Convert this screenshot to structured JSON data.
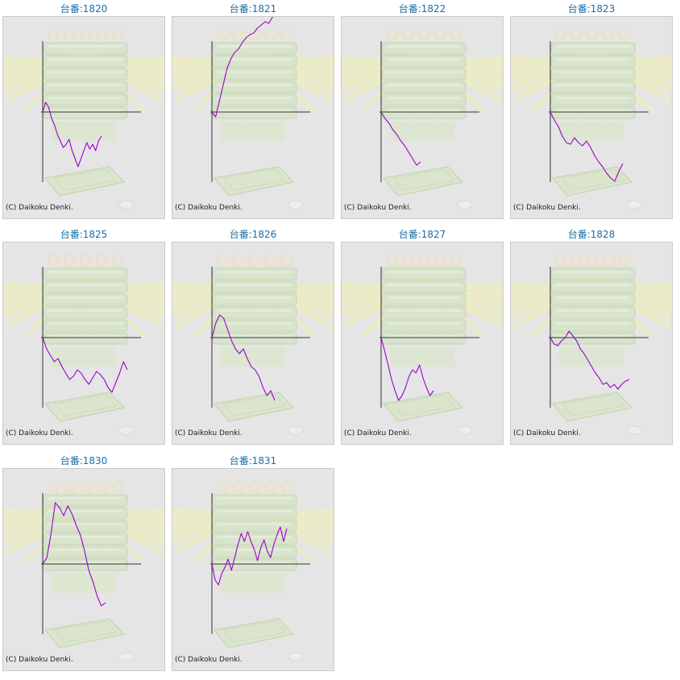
{
  "panels": [
    {
      "title": "台番:1820",
      "copyright": "(C) Daikoku Denki."
    },
    {
      "title": "台番:1821",
      "copyright": "(C) Daikoku Denki."
    },
    {
      "title": "台番:1822",
      "copyright": "(C) Daikoku Denki."
    },
    {
      "title": "台番:1823",
      "copyright": "(C) Daikoku Denki."
    },
    {
      "title": "台番:1825",
      "copyright": "(C) Daikoku Denki."
    },
    {
      "title": "台番:1826",
      "copyright": "(C) Daikoku Denki."
    },
    {
      "title": "台番:1827",
      "copyright": "(C) Daikoku Denki."
    },
    {
      "title": "台番:1828",
      "copyright": "(C) Daikoku Denki."
    },
    {
      "title": "台番:1830",
      "copyright": "(C) Daikoku Denki."
    },
    {
      "title": "台番:1831",
      "copyright": "(C) Daikoku Denki."
    }
  ],
  "colors": {
    "line": "#9900cc",
    "axis": "#333333",
    "title": "#1b6ea8",
    "panel_bg": "#e5e5e5"
  },
  "chart_data": [
    {
      "type": "line",
      "title": "台番:1820",
      "y": [
        0,
        12,
        6,
        -8,
        -16,
        -28,
        -36,
        -44,
        -40,
        -34,
        -48,
        -58,
        -68,
        -58,
        -48,
        -38,
        -46,
        -40,
        -48,
        -36,
        -30
      ]
    },
    {
      "type": "line",
      "title": "台番:1821",
      "y": [
        0,
        -6,
        14,
        34,
        54,
        66,
        74,
        78,
        86,
        92,
        96,
        98,
        104,
        108,
        112,
        110,
        118,
        122
      ]
    },
    {
      "type": "line",
      "title": "台番:1822",
      "y": [
        0,
        -8,
        -14,
        -22,
        -28,
        -36,
        -42,
        -50,
        -58,
        -66,
        -62
      ]
    },
    {
      "type": "line",
      "title": "台番:1823",
      "y": [
        0,
        -10,
        -18,
        -30,
        -38,
        -40,
        -32,
        -38,
        -42,
        -36,
        -44,
        -54,
        -62,
        -68,
        -76,
        -82,
        -86,
        -74,
        -64
      ]
    },
    {
      "type": "line",
      "title": "台番:1825",
      "y": [
        0,
        -14,
        -22,
        -30,
        -26,
        -36,
        -44,
        -52,
        -48,
        -40,
        -44,
        -52,
        -58,
        -50,
        -42,
        -46,
        -52,
        -62,
        -68,
        -56,
        -44,
        -30,
        -40
      ]
    },
    {
      "type": "line",
      "title": "台番:1826",
      "y": [
        0,
        18,
        28,
        24,
        10,
        -4,
        -14,
        -20,
        -14,
        -26,
        -36,
        -40,
        -48,
        -62,
        -72,
        -66,
        -78
      ]
    },
    {
      "type": "line",
      "title": "台番:1827",
      "y": [
        0,
        -16,
        -34,
        -52,
        -66,
        -78,
        -72,
        -62,
        -48,
        -40,
        -44,
        -34,
        -50,
        -62,
        -72,
        -66
      ]
    },
    {
      "type": "line",
      "title": "台番:1828",
      "y": [
        0,
        -8,
        -10,
        -4,
        0,
        8,
        2,
        -4,
        -14,
        -20,
        -28,
        -36,
        -44,
        -50,
        -58,
        -56,
        -62,
        -58,
        -64,
        -58,
        -54,
        -52
      ]
    },
    {
      "type": "line",
      "title": "台番:1830",
      "y": [
        0,
        8,
        38,
        76,
        70,
        60,
        72,
        62,
        48,
        36,
        16,
        -8,
        -22,
        -40,
        -52,
        -48
      ]
    },
    {
      "type": "line",
      "title": "台番:1831",
      "y": [
        0,
        -20,
        -26,
        -12,
        -4,
        6,
        -8,
        8,
        24,
        38,
        28,
        40,
        28,
        18,
        4,
        20,
        30,
        16,
        8,
        24,
        36,
        46,
        28,
        44
      ]
    }
  ]
}
